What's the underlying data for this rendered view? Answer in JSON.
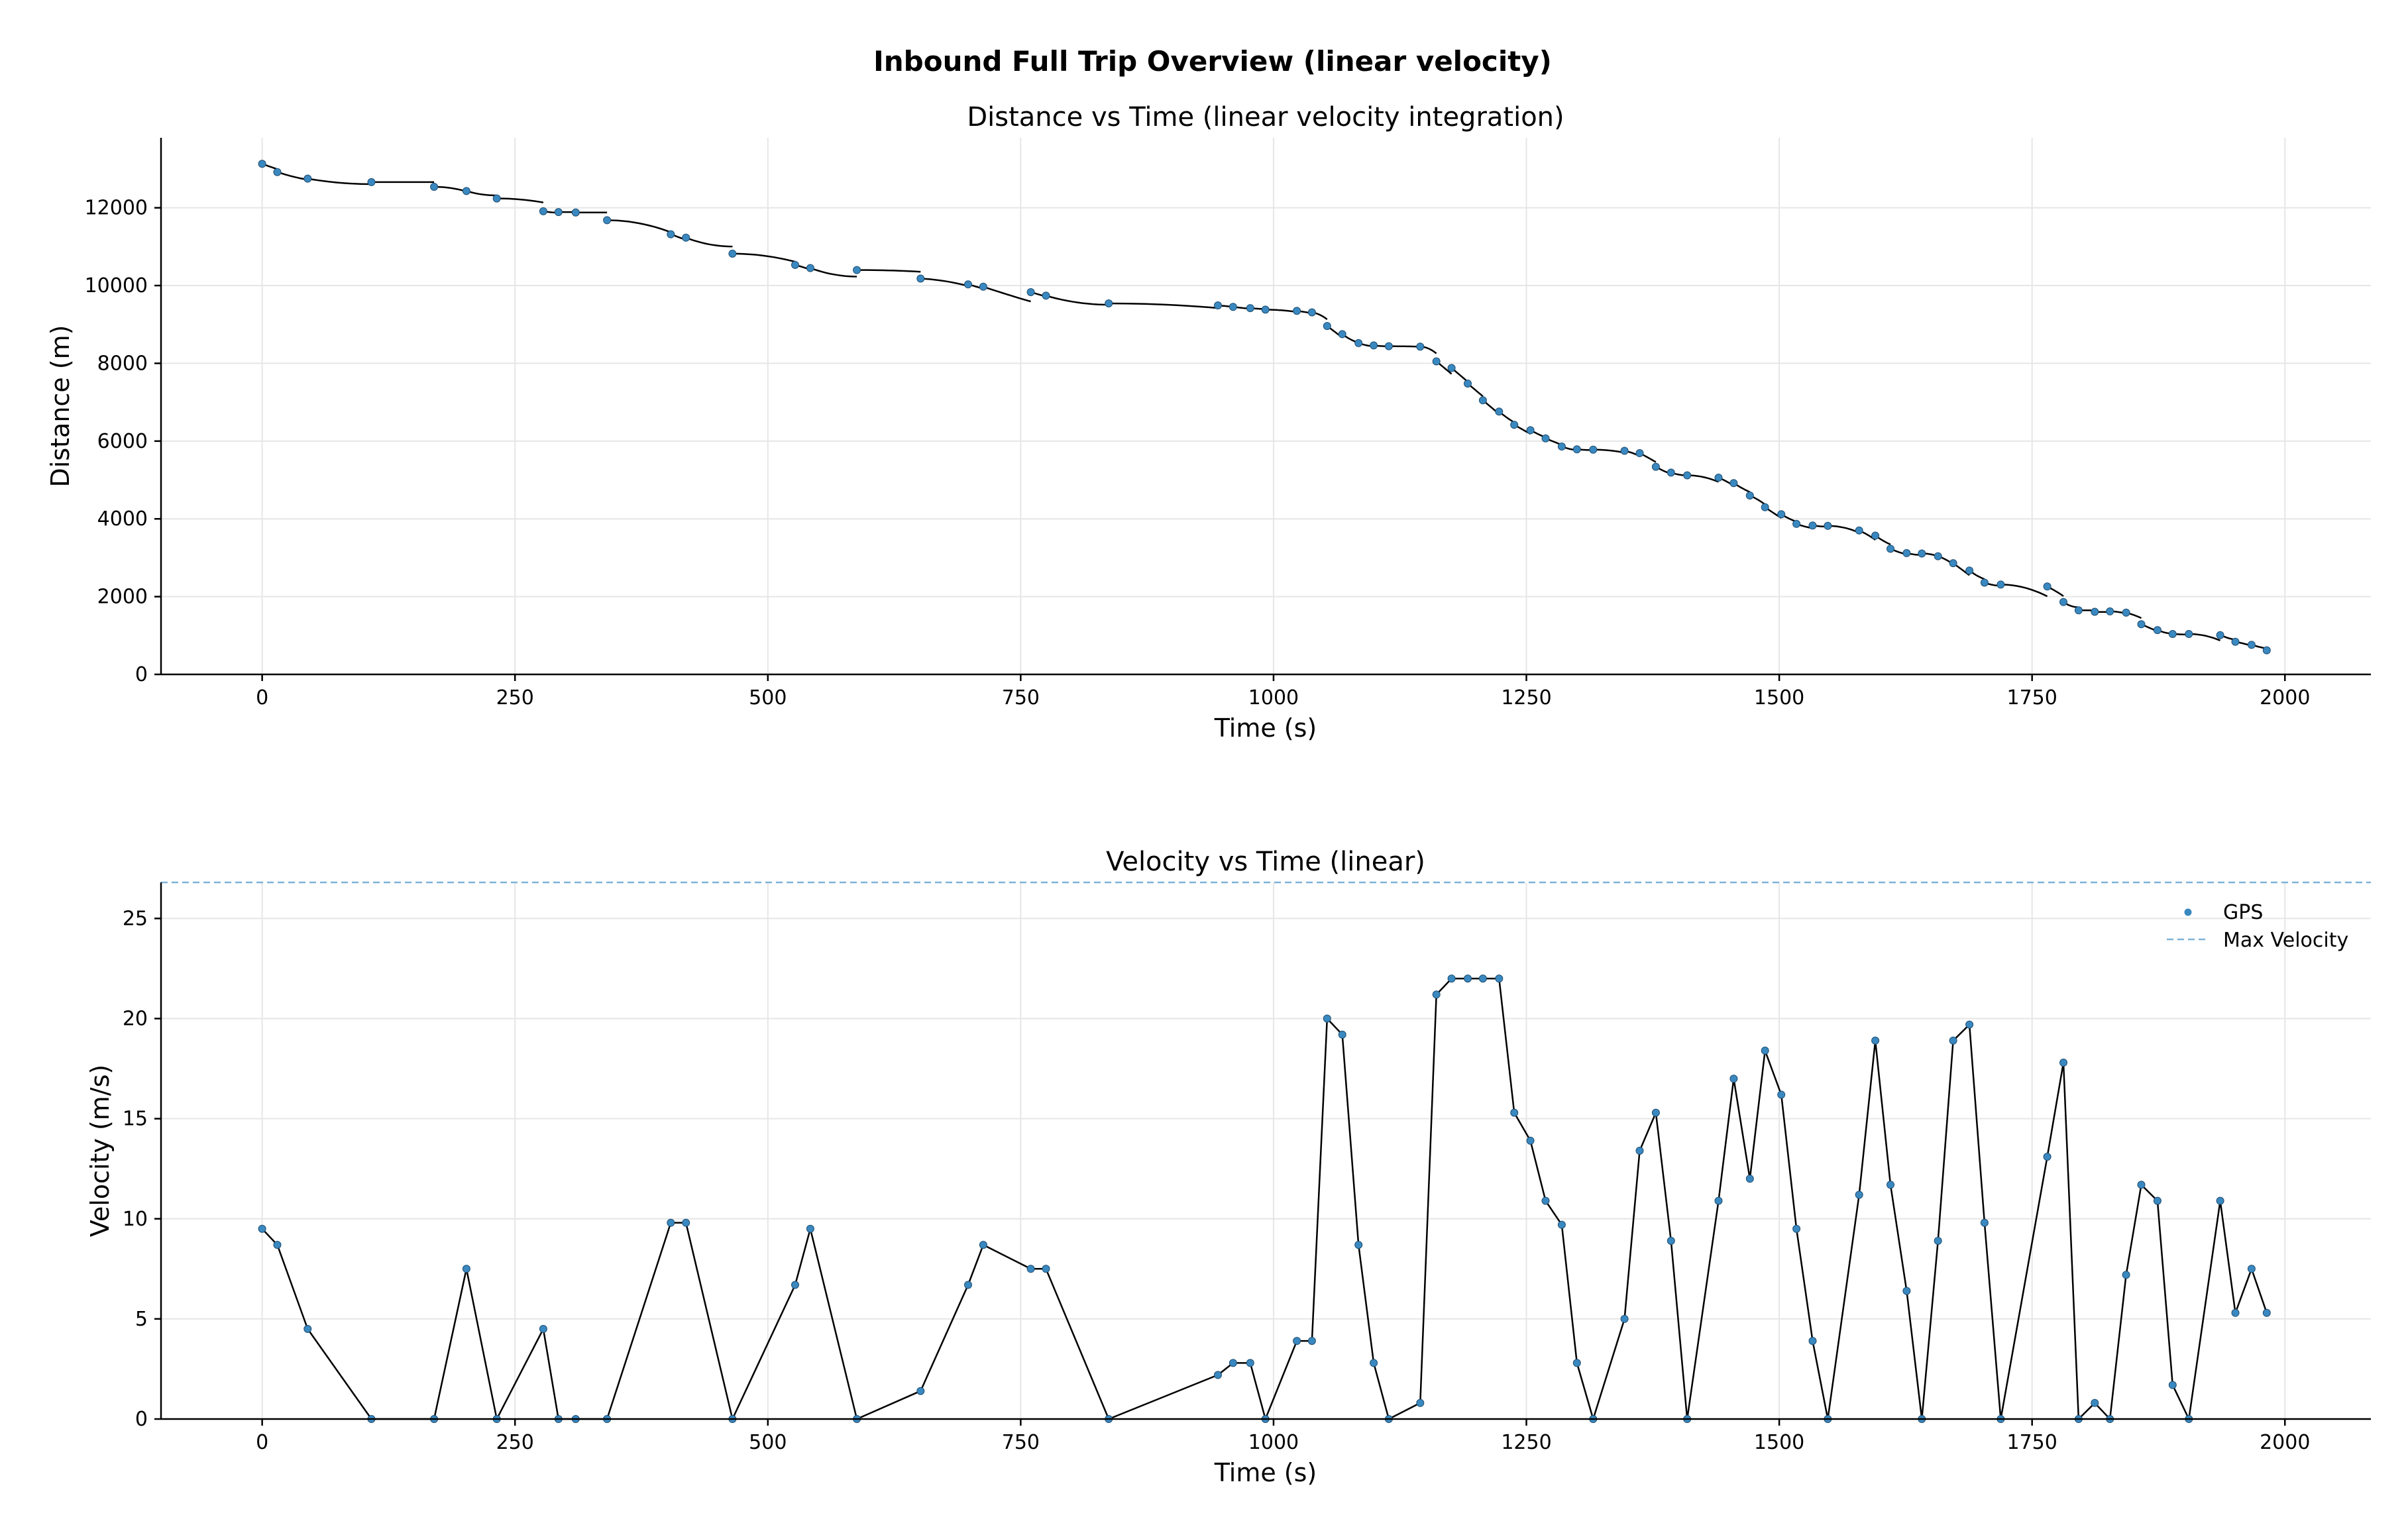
{
  "figure_title": "Inbound Full Trip Overview (linear velocity)",
  "colors": {
    "gps": "#3a88c0",
    "line": "#000000",
    "max": "#7fb2d8"
  },
  "chart_data": [
    {
      "type": "line",
      "title": "Distance vs Time (linear velocity integration)",
      "xlabel": "Time (s)",
      "ylabel": "Distance (m)",
      "xlim": [
        -100,
        2085
      ],
      "ylim": [
        0,
        13800
      ],
      "xticks": [
        0,
        250,
        500,
        750,
        1000,
        1250,
        1500,
        1750,
        2000
      ],
      "yticks": [
        0,
        2000,
        4000,
        6000,
        8000,
        10000,
        12000
      ],
      "grid": true,
      "series": [
        {
          "type": "scatter",
          "x": [
            0,
            15,
            45,
            108,
            170,
            202,
            232,
            278,
            293,
            310,
            341,
            404,
            419,
            465,
            527,
            542,
            588,
            651,
            698,
            713,
            760,
            775,
            837,
            945,
            960,
            977,
            992,
            1023,
            1038,
            1053,
            1068,
            1084,
            1099,
            1114,
            1145,
            1161,
            1176,
            1192,
            1207,
            1223,
            1238,
            1254,
            1269,
            1285,
            1300,
            1316,
            1347,
            1362,
            1378,
            1393,
            1409,
            1440,
            1455,
            1471,
            1486,
            1502,
            1517,
            1533,
            1548,
            1579,
            1595,
            1610,
            1626,
            1641,
            1657,
            1672,
            1688,
            1703,
            1719,
            1765,
            1781,
            1796,
            1812,
            1827,
            1843,
            1858,
            1874,
            1889,
            1905,
            1936,
            1951,
            1967,
            1982
          ],
          "y": [
            13130,
            12920,
            12750,
            12660,
            12540,
            12430,
            12240,
            11910,
            11890,
            11880,
            11680,
            11320,
            11230,
            10820,
            10530,
            10450,
            10400,
            10180,
            10030,
            9970,
            9830,
            9740,
            9540,
            9490,
            9450,
            9420,
            9380,
            9350,
            9310,
            8960,
            8750,
            8520,
            8460,
            8440,
            8430,
            8050,
            7880,
            7480,
            7050,
            6760,
            6420,
            6280,
            6070,
            5860,
            5790,
            5780,
            5750,
            5690,
            5340,
            5190,
            5120,
            5060,
            4920,
            4600,
            4300,
            4120,
            3870,
            3830,
            3820,
            3700,
            3570,
            3230,
            3120,
            3110,
            3040,
            2860,
            2670,
            2360,
            2310,
            2260,
            1860,
            1650,
            1610,
            1620,
            1590,
            1290,
            1140,
            1040,
            1040,
            1010,
            840,
            760,
            620
          ]
        }
      ]
    },
    {
      "type": "line",
      "title": "Velocity vs Time (linear)",
      "xlabel": "Time (s)",
      "ylabel": "Velocity (m/s)",
      "xlim": [
        -100,
        2085
      ],
      "ylim": [
        0,
        26.8
      ],
      "xticks": [
        0,
        250,
        500,
        750,
        1000,
        1250,
        1500,
        1750,
        2000
      ],
      "yticks": [
        0,
        5,
        10,
        15,
        20,
        25
      ],
      "grid": true,
      "legend": "top-right",
      "max_velocity": 26.8,
      "series": [
        {
          "name": "GPS",
          "type": "scatter",
          "x": [
            0,
            15,
            45,
            108,
            170,
            202,
            232,
            278,
            293,
            310,
            341,
            404,
            419,
            465,
            527,
            542,
            588,
            651,
            698,
            713,
            760,
            775,
            837,
            945,
            960,
            977,
            992,
            1023,
            1038,
            1053,
            1068,
            1084,
            1099,
            1114,
            1145,
            1161,
            1176,
            1192,
            1207,
            1223,
            1238,
            1254,
            1269,
            1285,
            1300,
            1316,
            1347,
            1362,
            1378,
            1393,
            1409,
            1440,
            1455,
            1471,
            1486,
            1502,
            1517,
            1533,
            1548,
            1579,
            1595,
            1610,
            1626,
            1641,
            1657,
            1672,
            1688,
            1703,
            1719,
            1765,
            1781,
            1796,
            1812,
            1827,
            1843,
            1858,
            1874,
            1889,
            1905,
            1936,
            1951,
            1967,
            1982
          ],
          "y": [
            9.5,
            8.7,
            4.5,
            0,
            0,
            7.5,
            0,
            4.5,
            0,
            0,
            0,
            9.8,
            9.8,
            0,
            6.7,
            9.5,
            0,
            1.4,
            6.7,
            8.7,
            7.5,
            7.5,
            0,
            2.2,
            2.8,
            2.8,
            0,
            3.9,
            3.9,
            20.0,
            19.2,
            8.7,
            2.8,
            0,
            0.8,
            21.2,
            22.0,
            22.0,
            22.0,
            22.0,
            15.3,
            13.9,
            10.9,
            9.7,
            2.8,
            0,
            5.0,
            13.4,
            15.3,
            8.9,
            0,
            10.9,
            17.0,
            12.0,
            18.4,
            16.2,
            9.5,
            3.9,
            0,
            11.2,
            18.9,
            11.7,
            6.4,
            0,
            8.9,
            18.9,
            19.7,
            9.8,
            0,
            13.1,
            17.8,
            0,
            0.8,
            0,
            7.2,
            11.7,
            10.9,
            1.7,
            0,
            10.9,
            5.3,
            7.5,
            5.3
          ]
        },
        {
          "name": "Max Velocity",
          "type": "hline"
        }
      ]
    }
  ]
}
